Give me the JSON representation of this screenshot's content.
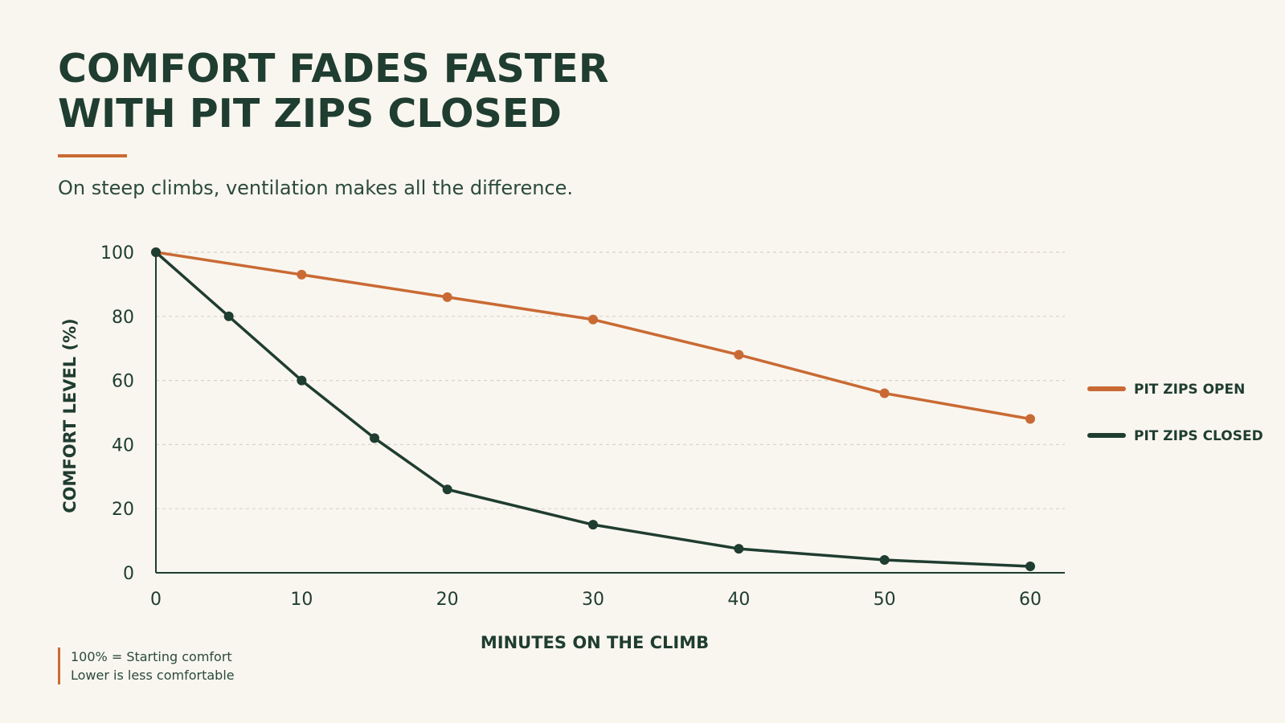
{
  "title_lines": [
    "COMFORT FADES FASTER",
    "WITH PIT ZIPS CLOSED"
  ],
  "subtitle": "On steep climbs, ventilation makes all the difference.",
  "note_lines": [
    "100% = Starting comfort",
    "Lower is less comfortable"
  ],
  "colors": {
    "background": "#f9f6ef",
    "text": "#1f3d30",
    "accent": "#c96a34",
    "closed": "#1f3d30",
    "grid": "#d9d4c8"
  },
  "chart_data": {
    "type": "line",
    "title": "COMFORT FADES FASTER WITH PIT ZIPS CLOSED",
    "subtitle": "On steep climbs, ventilation makes all the difference.",
    "xlabel": "MINUTES ON THE CLIMB",
    "ylabel": "COMFORT LEVEL (%)",
    "xlim": [
      0,
      60
    ],
    "ylim": [
      0,
      100
    ],
    "x_ticks": [
      0,
      10,
      20,
      30,
      40,
      50,
      60
    ],
    "y_ticks": [
      0,
      20,
      40,
      60,
      80,
      100
    ],
    "grid": "horizontal dashed",
    "legend_position": "right",
    "series": [
      {
        "name": "PIT ZIPS OPEN",
        "color": "#c96a34",
        "x": [
          0,
          10,
          20,
          30,
          40,
          50,
          60
        ],
        "y": [
          100,
          93,
          86,
          79,
          68,
          56,
          48
        ]
      },
      {
        "name": "PIT ZIPS CLOSED",
        "color": "#1f3d30",
        "x": [
          0,
          5,
          10,
          15,
          20,
          30,
          40,
          50,
          60
        ],
        "y": [
          100,
          80,
          60,
          42,
          26,
          15,
          7.5,
          4,
          2
        ]
      }
    ]
  }
}
